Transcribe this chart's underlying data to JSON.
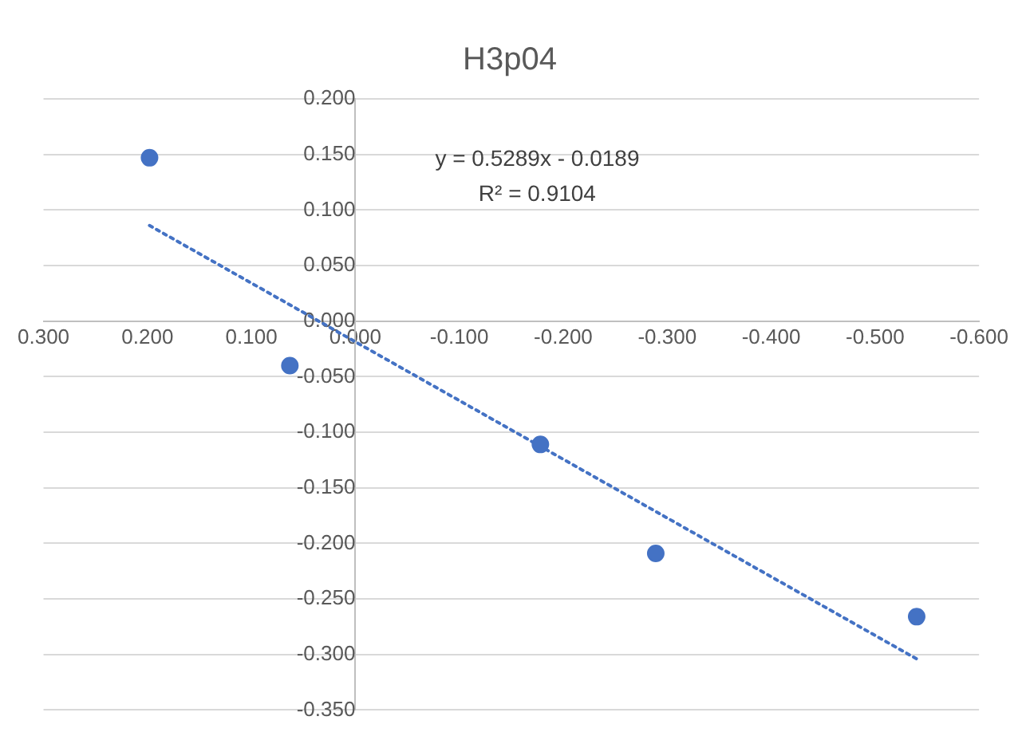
{
  "chart_data": {
    "type": "scatter",
    "title": "H3p04",
    "series": [
      {
        "type": "scatter",
        "color": "#4472c4",
        "x": [
          0.198,
          0.063,
          -0.178,
          -0.289,
          -0.54
        ],
        "values": [
          0.147,
          -0.04,
          -0.111,
          -0.209,
          -0.266
        ],
        "marker": "circle"
      },
      {
        "type": "line",
        "color": "#4472c4",
        "x": [
          0.198,
          -0.54
        ],
        "values": [
          0.086,
          -0.304
        ],
        "line_style": "dotted",
        "marker": "none"
      }
    ],
    "xlim": [
      0.3,
      -0.6
    ],
    "xticks": [
      {
        "value": 0.3,
        "label": "0.300"
      },
      {
        "value": 0.2,
        "label": "0.200"
      },
      {
        "value": 0.1,
        "label": "0.100"
      },
      {
        "value": 0,
        "label": "0.000"
      },
      {
        "value": -0.1,
        "label": "-0.100"
      },
      {
        "value": -0.2,
        "label": "-0.200"
      },
      {
        "value": -0.3,
        "label": "-0.300"
      },
      {
        "value": -0.4,
        "label": "-0.400"
      },
      {
        "value": -0.5,
        "label": "-0.500"
      },
      {
        "value": -0.6,
        "label": "-0.600"
      }
    ],
    "ylim": [
      -0.35,
      0.2
    ],
    "yticks": [
      {
        "value": 0.2,
        "label": "0.200"
      },
      {
        "value": 0.15,
        "label": "0.150"
      },
      {
        "value": 0.1,
        "label": "0.100"
      },
      {
        "value": 0.05,
        "label": "0.050"
      },
      {
        "value": 0,
        "label": "0.000"
      },
      {
        "value": -0.05,
        "label": "-0.050"
      },
      {
        "value": -0.1,
        "label": "-0.100"
      },
      {
        "value": -0.15,
        "label": "-0.150"
      },
      {
        "value": -0.2,
        "label": "-0.200"
      },
      {
        "value": -0.25,
        "label": "-0.250"
      },
      {
        "value": -0.3,
        "label": "-0.300"
      },
      {
        "value": -0.35,
        "label": "-0.350"
      }
    ],
    "grid": "y",
    "legend": false,
    "annotations": [
      "y = 0.5289x - 0.0189",
      "R² = 0.9104"
    ]
  }
}
